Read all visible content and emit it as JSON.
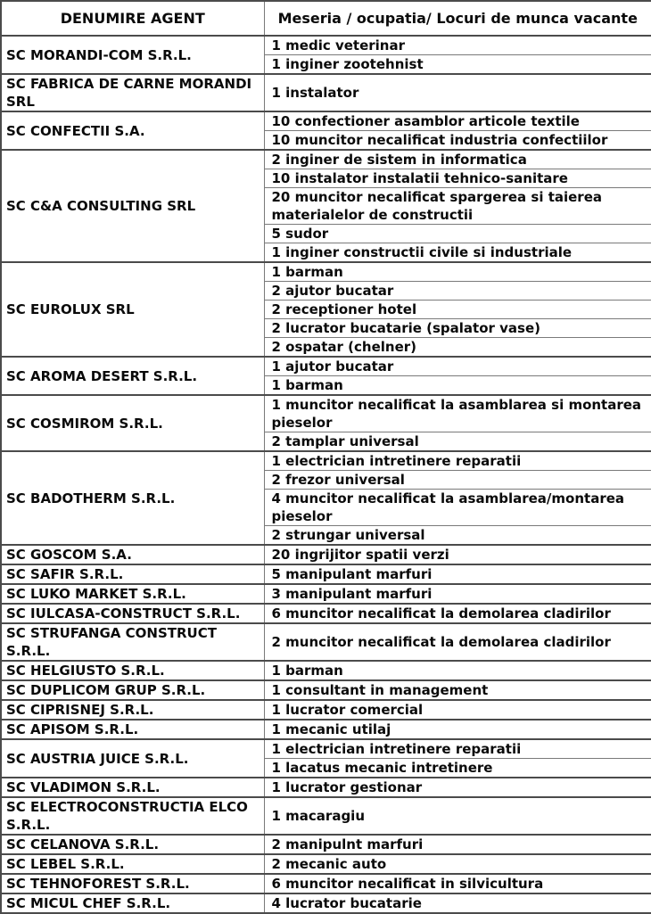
{
  "header": {
    "agent_col": "DENUMIRE AGENT",
    "jobs_col": "Meseria / ocupatia/ Locuri de munca vacante"
  },
  "agents": [
    {
      "name": "SC MORANDI-COM S.R.L.",
      "jobs": [
        "1 medic veterinar",
        "1 inginer zootehnist"
      ]
    },
    {
      "name": "SC FABRICA DE CARNE MORANDI\nSRL",
      "jobs": [
        "1 instalator"
      ]
    },
    {
      "name": "SC CONFECTII S.A.",
      "jobs": [
        "10 confectioner asamblor articole textile",
        "10 muncitor necalificat industria confectiilor"
      ]
    },
    {
      "name": "SC C&A CONSULTING SRL",
      "jobs": [
        "2 inginer de sistem in informatica",
        "10 instalator instalatii tehnico-sanitare",
        "20 muncitor necalificat spargerea si taierea\nmaterialelor de constructii",
        "5 sudor",
        "1 inginer constructii civile si industriale"
      ]
    },
    {
      "name": "SC EUROLUX SRL",
      "jobs": [
        "1 barman",
        "2 ajutor bucatar",
        "2 receptioner hotel",
        "2 lucrator bucatarie (spalator vase)",
        "2 ospatar (chelner)"
      ]
    },
    {
      "name": "SC AROMA DESERT S.R.L.",
      "jobs": [
        "1 ajutor bucatar",
        "1 barman"
      ]
    },
    {
      "name": "SC COSMIROM S.R.L.",
      "jobs": [
        "1 muncitor necalificat la asamblarea si montarea\npieselor",
        "2 tamplar universal"
      ]
    },
    {
      "name": "SC BADOTHERM S.R.L.",
      "jobs": [
        "1 electrician intretinere reparatii",
        "2 frezor universal",
        "4 muncitor necalificat la asamblarea/montarea\npieselor",
        "2 strungar universal"
      ]
    },
    {
      "name": "SC GOSCOM S.A.",
      "jobs": [
        "20 ingrijitor spatii verzi"
      ]
    },
    {
      "name": "SC SAFIR S.R.L.",
      "jobs": [
        "5 manipulant marfuri"
      ]
    },
    {
      "name": "SC LUKO MARKET S.R.L.",
      "jobs": [
        "3 manipulant marfuri"
      ]
    },
    {
      "name": "SC IULCASA-CONSTRUCT S.R.L.",
      "jobs": [
        "6 muncitor necalificat la demolarea cladirilor"
      ]
    },
    {
      "name": "SC STRUFANGA CONSTRUCT\nS.R.L.",
      "jobs": [
        "2 muncitor necalificat la demolarea cladirilor"
      ]
    },
    {
      "name": "SC HELGIUSTO S.R.L.",
      "jobs": [
        "1 barman"
      ]
    },
    {
      "name": "SC DUPLICOM GRUP S.R.L.",
      "jobs": [
        "1 consultant in management"
      ]
    },
    {
      "name": "SC CIPRISNEJ S.R.L.",
      "jobs": [
        "1 lucrator comercial"
      ]
    },
    {
      "name": "SC APISOM S.R.L.",
      "jobs": [
        "1 mecanic utilaj"
      ]
    },
    {
      "name": "SC AUSTRIA JUICE S.R.L.",
      "jobs": [
        "1 electrician intretinere reparatii",
        "1 lacatus mecanic intretinere"
      ]
    },
    {
      "name": "SC VLADIMON S.R.L.",
      "jobs": [
        "1 lucrator gestionar"
      ]
    },
    {
      "name": "SC ELECTROCONSTRUCTIA ELCO\nS.R.L.",
      "jobs": [
        "1 macaragiu"
      ]
    },
    {
      "name": "SC CELANOVA S.R.L.",
      "jobs": [
        "2 manipulnt marfuri"
      ]
    },
    {
      "name": "SC LEBEL S.R.L.",
      "jobs": [
        "2 mecanic auto"
      ]
    },
    {
      "name": "SC TEHNOFOREST S.R.L.",
      "jobs": [
        "6 muncitor necalificat in silvicultura"
      ]
    },
    {
      "name": "SC MICUL CHEF S.R.L.",
      "jobs": [
        "4 lucrator bucatarie"
      ]
    }
  ]
}
